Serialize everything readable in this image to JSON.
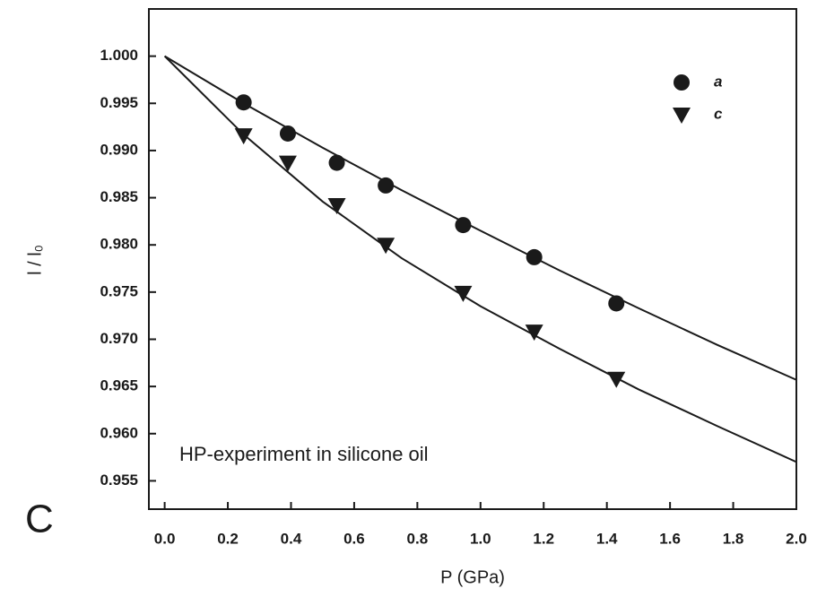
{
  "chart_data": {
    "type": "scatter",
    "x_label": "P (GPa)",
    "y_label": "l / l₀",
    "annotation": "HP-experiment in silicone oil",
    "panel_label": "C",
    "x": [
      0.25,
      0.39,
      0.545,
      0.7,
      0.945,
      1.17,
      1.43
    ],
    "series": [
      {
        "name": "a",
        "color": "#1a1a1a",
        "marker": "circle",
        "values": [
          0.9951,
          0.9918,
          0.9887,
          0.9863,
          0.9821,
          0.9787,
          0.9738
        ]
      },
      {
        "name": "c",
        "color": "#1a1a1a",
        "marker": "triangle",
        "values": [
          0.9916,
          0.9887,
          0.9842,
          0.98,
          0.9749,
          0.9708,
          0.9658
        ]
      }
    ],
    "fits": [
      {
        "color": "#1a1a1a",
        "x": [
          0,
          0.25,
          0.5,
          0.75,
          1.0,
          1.25,
          1.5,
          1.75,
          2.0
        ],
        "values": [
          1.0,
          0.995,
          0.9903,
          0.9858,
          0.9815,
          0.9773,
          0.9733,
          0.9694,
          0.9657
        ]
      },
      {
        "color": "#1a1a1a",
        "x": [
          0,
          0.25,
          0.5,
          0.75,
          1.0,
          1.25,
          1.5,
          1.75,
          2.0
        ],
        "values": [
          1.0,
          0.9917,
          0.9846,
          0.9786,
          0.9735,
          0.969,
          0.9647,
          0.9608,
          0.957
        ]
      }
    ],
    "xlim": [
      -0.05,
      2.0
    ],
    "xticks": [
      {
        "value": 0,
        "label": "0.0"
      },
      {
        "value": 0.2,
        "label": "0.2"
      },
      {
        "value": 0.4,
        "label": "0.4"
      },
      {
        "value": 0.6,
        "label": "0.6"
      },
      {
        "value": 0.8,
        "label": "0.8"
      },
      {
        "value": 1,
        "label": "1.0"
      },
      {
        "value": 1.2,
        "label": "1.2"
      },
      {
        "value": 1.4,
        "label": "1.4"
      },
      {
        "value": 1.6,
        "label": "1.6"
      },
      {
        "value": 1.8,
        "label": "1.8"
      },
      {
        "value": 2,
        "label": "2.0"
      }
    ],
    "ylim": [
      0.952,
      1.005
    ],
    "yticks": [
      {
        "value": 0.955,
        "label": "0.955"
      },
      {
        "value": 0.96,
        "label": "0.960"
      },
      {
        "value": 0.965,
        "label": "0.965"
      },
      {
        "value": 0.97,
        "label": "0.970"
      },
      {
        "value": 0.975,
        "label": "0.975"
      },
      {
        "value": 0.98,
        "label": "0.980"
      },
      {
        "value": 0.985,
        "label": "0.985"
      },
      {
        "value": 0.99,
        "label": "0.990"
      },
      {
        "value": 0.995,
        "label": "0.995"
      },
      {
        "value": 1,
        "label": "1.000"
      }
    ],
    "legend": "top right",
    "grid": false
  }
}
